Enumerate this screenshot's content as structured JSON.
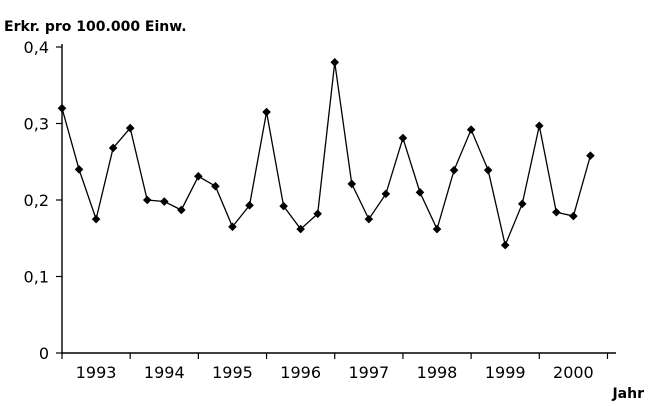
{
  "chart_data": {
    "type": "line",
    "ylabel": "Erkr. pro 100.000 Einw.",
    "xlabel": "Jahr",
    "ylim": [
      0,
      0.4
    ],
    "yticks": [
      {
        "value": 0,
        "label": "0"
      },
      {
        "value": 0.1,
        "label": "0,1"
      },
      {
        "value": 0.2,
        "label": "0,2"
      },
      {
        "value": 0.3,
        "label": "0,3"
      },
      {
        "value": 0.4,
        "label": "0,4"
      }
    ],
    "x_categories": [
      "1993 Q1",
      "1993 Q2",
      "1993 Q3",
      "1993 Q4",
      "1994 Q1",
      "1994 Q2",
      "1994 Q3",
      "1994 Q4",
      "1995 Q1",
      "1995 Q2",
      "1995 Q3",
      "1995 Q4",
      "1996 Q1",
      "1996 Q2",
      "1996 Q3",
      "1996 Q4",
      "1997 Q1",
      "1997 Q2",
      "1997 Q3",
      "1997 Q4",
      "1998 Q1",
      "1998 Q2",
      "1998 Q3",
      "1998 Q4",
      "1999 Q1",
      "1999 Q2",
      "1999 Q3",
      "1999 Q4",
      "2000 Q1",
      "2000 Q2",
      "2000 Q3",
      "2000 Q4"
    ],
    "year_labels": [
      "1993",
      "1994",
      "1995",
      "1996",
      "1997",
      "1998",
      "1999",
      "2000"
    ],
    "grid": false,
    "series": [
      {
        "values": [
          0.32,
          0.24,
          0.175,
          0.268,
          0.294,
          0.2,
          0.198,
          0.187,
          0.231,
          0.218,
          0.165,
          0.193,
          0.315,
          0.192,
          0.162,
          0.182,
          0.38,
          0.221,
          0.175,
          0.208,
          0.281,
          0.21,
          0.162,
          0.239,
          0.292,
          0.239,
          0.141,
          0.195,
          0.297,
          0.184,
          0.179,
          0.258
        ]
      }
    ]
  }
}
